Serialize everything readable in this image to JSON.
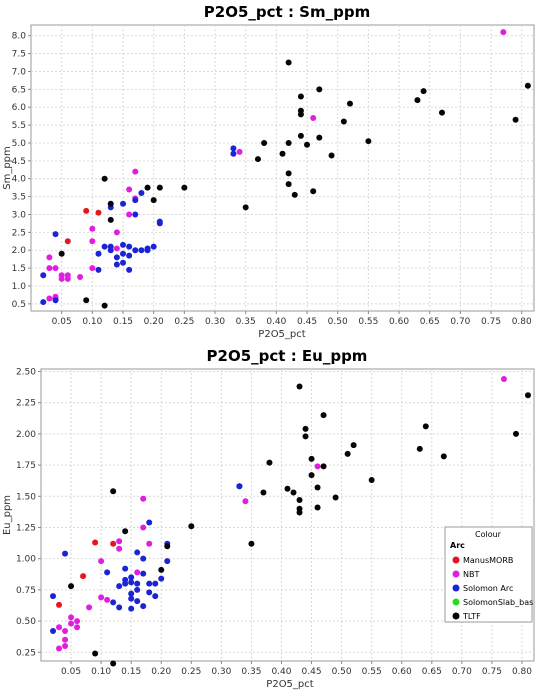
{
  "chart_data": [
    {
      "type": "scatter",
      "title": "P2O5_pct : Sm_ppm",
      "xlabel": "P2O5_pct",
      "ylabel": "Sm_ppm",
      "xlim": [
        0.0,
        0.82
      ],
      "ylim": [
        0.3,
        8.3
      ],
      "xticks": [
        0.05,
        0.1,
        0.15,
        0.2,
        0.25,
        0.3,
        0.35,
        0.4,
        0.45,
        0.5,
        0.55,
        0.6,
        0.65,
        0.7,
        0.75,
        0.8
      ],
      "xtick_labels": [
        "0.05",
        "0.10",
        "0.15",
        "0.20",
        "0.25",
        "0.30",
        "0.35",
        "0.40",
        "0.45",
        "0.50",
        "0.55",
        "0.60",
        "0.65",
        "0.70",
        "0.75",
        "0.80"
      ],
      "yticks": [
        0.5,
        1.0,
        1.5,
        2.0,
        2.5,
        3.0,
        3.5,
        4.0,
        4.5,
        5.0,
        5.5,
        6.0,
        6.5,
        7.0,
        7.5,
        8.0
      ],
      "ytick_labels": [
        "0.5",
        "1.0",
        "1.5",
        "2.0",
        "2.5",
        "3.0",
        "3.5",
        "4.0",
        "4.5",
        "5.0",
        "5.5",
        "6.0",
        "6.5",
        "7.0",
        "7.5",
        "8.0"
      ],
      "grid": true,
      "series": [
        {
          "name": "ManusMORB",
          "color": "#e8141e",
          "points": [
            [
              0.09,
              3.1
            ],
            [
              0.11,
              3.05
            ],
            [
              0.06,
              2.25
            ]
          ]
        },
        {
          "name": "NBT",
          "color": "#e01ee0",
          "points": [
            [
              0.03,
              1.8
            ],
            [
              0.03,
              1.5
            ],
            [
              0.04,
              1.5
            ],
            [
              0.05,
              1.3
            ],
            [
              0.05,
              1.2
            ],
            [
              0.06,
              1.3
            ],
            [
              0.06,
              1.2
            ],
            [
              0.08,
              1.25
            ],
            [
              0.03,
              0.65
            ],
            [
              0.04,
              0.65
            ],
            [
              0.04,
              0.7
            ],
            [
              0.1,
              1.5
            ],
            [
              0.1,
              2.25
            ],
            [
              0.1,
              2.6
            ],
            [
              0.14,
              2.5
            ],
            [
              0.14,
              2.05
            ],
            [
              0.16,
              3.0
            ],
            [
              0.16,
              3.7
            ],
            [
              0.17,
              4.2
            ],
            [
              0.17,
              3.45
            ],
            [
              0.34,
              4.75
            ],
            [
              0.46,
              5.7
            ],
            [
              0.77,
              8.1
            ]
          ]
        },
        {
          "name": "Solomon Arc",
          "color": "#1a23d6",
          "points": [
            [
              0.02,
              1.3
            ],
            [
              0.02,
              0.55
            ],
            [
              0.04,
              0.6
            ],
            [
              0.04,
              2.45
            ],
            [
              0.11,
              1.9
            ],
            [
              0.11,
              1.45
            ],
            [
              0.12,
              2.1
            ],
            [
              0.13,
              3.2
            ],
            [
              0.13,
              2.1
            ],
            [
              0.13,
              2.0
            ],
            [
              0.14,
              1.8
            ],
            [
              0.14,
              1.6
            ],
            [
              0.15,
              1.65
            ],
            [
              0.15,
              1.9
            ],
            [
              0.15,
              2.15
            ],
            [
              0.16,
              2.1
            ],
            [
              0.16,
              1.85
            ],
            [
              0.16,
              1.45
            ],
            [
              0.17,
              3.0
            ],
            [
              0.17,
              3.4
            ],
            [
              0.17,
              2.0
            ],
            [
              0.18,
              2.0
            ],
            [
              0.18,
              3.6
            ],
            [
              0.19,
              2.05
            ],
            [
              0.19,
              2.0
            ],
            [
              0.2,
              2.1
            ],
            [
              0.21,
              2.75
            ],
            [
              0.21,
              2.8
            ],
            [
              0.33,
              4.85
            ],
            [
              0.33,
              4.7
            ],
            [
              0.15,
              3.3
            ]
          ]
        },
        {
          "name": "SolomonSlab_bas",
          "color": "#22dd22",
          "points": []
        },
        {
          "name": "TLTF",
          "color": "#050505",
          "points": [
            [
              0.05,
              1.9
            ],
            [
              0.09,
              0.6
            ],
            [
              0.12,
              0.45
            ],
            [
              0.12,
              4.0
            ],
            [
              0.13,
              2.85
            ],
            [
              0.13,
              3.3
            ],
            [
              0.19,
              3.75
            ],
            [
              0.2,
              3.4
            ],
            [
              0.21,
              3.75
            ],
            [
              0.25,
              3.75
            ],
            [
              0.35,
              3.2
            ],
            [
              0.37,
              4.55
            ],
            [
              0.38,
              5.0
            ],
            [
              0.41,
              4.7
            ],
            [
              0.42,
              5.0
            ],
            [
              0.42,
              4.15
            ],
            [
              0.42,
              3.85
            ],
            [
              0.43,
              3.55
            ],
            [
              0.42,
              7.25
            ],
            [
              0.44,
              6.3
            ],
            [
              0.44,
              5.9
            ],
            [
              0.44,
              5.8
            ],
            [
              0.44,
              5.2
            ],
            [
              0.45,
              4.95
            ],
            [
              0.46,
              3.65
            ],
            [
              0.47,
              6.5
            ],
            [
              0.47,
              5.15
            ],
            [
              0.49,
              4.65
            ],
            [
              0.51,
              5.6
            ],
            [
              0.52,
              6.1
            ],
            [
              0.55,
              5.05
            ],
            [
              0.63,
              6.2
            ],
            [
              0.64,
              6.45
            ],
            [
              0.67,
              5.85
            ],
            [
              0.79,
              5.65
            ],
            [
              0.81,
              6.6
            ]
          ]
        }
      ]
    },
    {
      "type": "scatter",
      "title": "P2O5_pct : Eu_ppm",
      "xlabel": "P2O5_pct",
      "ylabel": "Eu_ppm",
      "xlim": [
        0.0,
        0.82
      ],
      "ylim": [
        0.18,
        2.52
      ],
      "xticks": [
        0.05,
        0.1,
        0.15,
        0.2,
        0.25,
        0.3,
        0.35,
        0.4,
        0.45,
        0.5,
        0.55,
        0.6,
        0.65,
        0.7,
        0.75,
        0.8
      ],
      "xtick_labels": [
        "0.05",
        "0.10",
        "0.15",
        "0.20",
        "0.25",
        "0.30",
        "0.35",
        "0.40",
        "0.45",
        "0.50",
        "0.55",
        "0.60",
        "0.65",
        "0.70",
        "0.75",
        "0.80"
      ],
      "yticks": [
        0.25,
        0.5,
        0.75,
        1.0,
        1.25,
        1.5,
        1.75,
        2.0,
        2.25,
        2.5
      ],
      "ytick_labels": [
        "0.25",
        "0.50",
        "0.75",
        "1.00",
        "1.25",
        "1.50",
        "1.75",
        "2.00",
        "2.25",
        "2.50"
      ],
      "grid": true,
      "legend": {
        "title": "Colour",
        "subtitle": "Arc",
        "placement": "right"
      },
      "series": [
        {
          "name": "ManusMORB",
          "color": "#e8141e",
          "points": [
            [
              0.03,
              0.63
            ],
            [
              0.07,
              0.86
            ],
            [
              0.09,
              1.13
            ],
            [
              0.12,
              1.12
            ]
          ]
        },
        {
          "name": "NBT",
          "color": "#e01ee0",
          "points": [
            [
              0.03,
              0.28
            ],
            [
              0.03,
              0.45
            ],
            [
              0.04,
              0.3
            ],
            [
              0.04,
              0.35
            ],
            [
              0.04,
              0.42
            ],
            [
              0.05,
              0.48
            ],
            [
              0.05,
              0.53
            ],
            [
              0.06,
              0.5
            ],
            [
              0.06,
              0.45
            ],
            [
              0.08,
              0.61
            ],
            [
              0.1,
              0.69
            ],
            [
              0.1,
              0.98
            ],
            [
              0.11,
              0.67
            ],
            [
              0.13,
              1.14
            ],
            [
              0.13,
              1.08
            ],
            [
              0.16,
              0.89
            ],
            [
              0.17,
              1.25
            ],
            [
              0.17,
              1.48
            ],
            [
              0.18,
              1.12
            ],
            [
              0.34,
              1.46
            ],
            [
              0.46,
              1.74
            ],
            [
              0.77,
              2.44
            ]
          ]
        },
        {
          "name": "Solomon Arc",
          "color": "#1a23d6",
          "points": [
            [
              0.02,
              0.7
            ],
            [
              0.02,
              0.42
            ],
            [
              0.04,
              1.04
            ],
            [
              0.11,
              0.89
            ],
            [
              0.12,
              0.65
            ],
            [
              0.13,
              0.61
            ],
            [
              0.13,
              0.78
            ],
            [
              0.14,
              0.83
            ],
            [
              0.14,
              0.8
            ],
            [
              0.14,
              0.92
            ],
            [
              0.15,
              0.6
            ],
            [
              0.15,
              0.68
            ],
            [
              0.15,
              0.72
            ],
            [
              0.15,
              0.81
            ],
            [
              0.15,
              0.85
            ],
            [
              0.16,
              0.8
            ],
            [
              0.16,
              0.75
            ],
            [
              0.16,
              0.66
            ],
            [
              0.16,
              1.05
            ],
            [
              0.17,
              0.62
            ],
            [
              0.17,
              0.88
            ],
            [
              0.17,
              1.0
            ],
            [
              0.18,
              0.8
            ],
            [
              0.18,
              0.73
            ],
            [
              0.18,
              1.29
            ],
            [
              0.19,
              0.8
            ],
            [
              0.19,
              0.7
            ],
            [
              0.2,
              0.84
            ],
            [
              0.21,
              0.98
            ],
            [
              0.21,
              1.12
            ],
            [
              0.33,
              1.58
            ],
            [
              0.33,
              1.58
            ]
          ]
        },
        {
          "name": "SolomonSlab_bas",
          "color": "#22dd22",
          "points": []
        },
        {
          "name": "TLTF",
          "color": "#050505",
          "points": [
            [
              0.05,
              0.78
            ],
            [
              0.09,
              0.24
            ],
            [
              0.12,
              0.16
            ],
            [
              0.12,
              1.54
            ],
            [
              0.14,
              1.22
            ],
            [
              0.2,
              0.91
            ],
            [
              0.21,
              1.1
            ],
            [
              0.25,
              1.26
            ],
            [
              0.35,
              1.12
            ],
            [
              0.37,
              1.53
            ],
            [
              0.38,
              1.77
            ],
            [
              0.41,
              1.56
            ],
            [
              0.42,
              1.53
            ],
            [
              0.43,
              1.47
            ],
            [
              0.43,
              1.4
            ],
            [
              0.43,
              1.37
            ],
            [
              0.43,
              2.38
            ],
            [
              0.44,
              2.04
            ],
            [
              0.44,
              1.98
            ],
            [
              0.45,
              1.8
            ],
            [
              0.45,
              1.67
            ],
            [
              0.46,
              1.57
            ],
            [
              0.46,
              1.41
            ],
            [
              0.47,
              2.15
            ],
            [
              0.47,
              1.74
            ],
            [
              0.49,
              1.49
            ],
            [
              0.51,
              1.84
            ],
            [
              0.52,
              1.91
            ],
            [
              0.55,
              1.63
            ],
            [
              0.63,
              1.88
            ],
            [
              0.64,
              2.06
            ],
            [
              0.67,
              1.82
            ],
            [
              0.79,
              2.0
            ],
            [
              0.81,
              2.31
            ]
          ]
        }
      ]
    }
  ]
}
